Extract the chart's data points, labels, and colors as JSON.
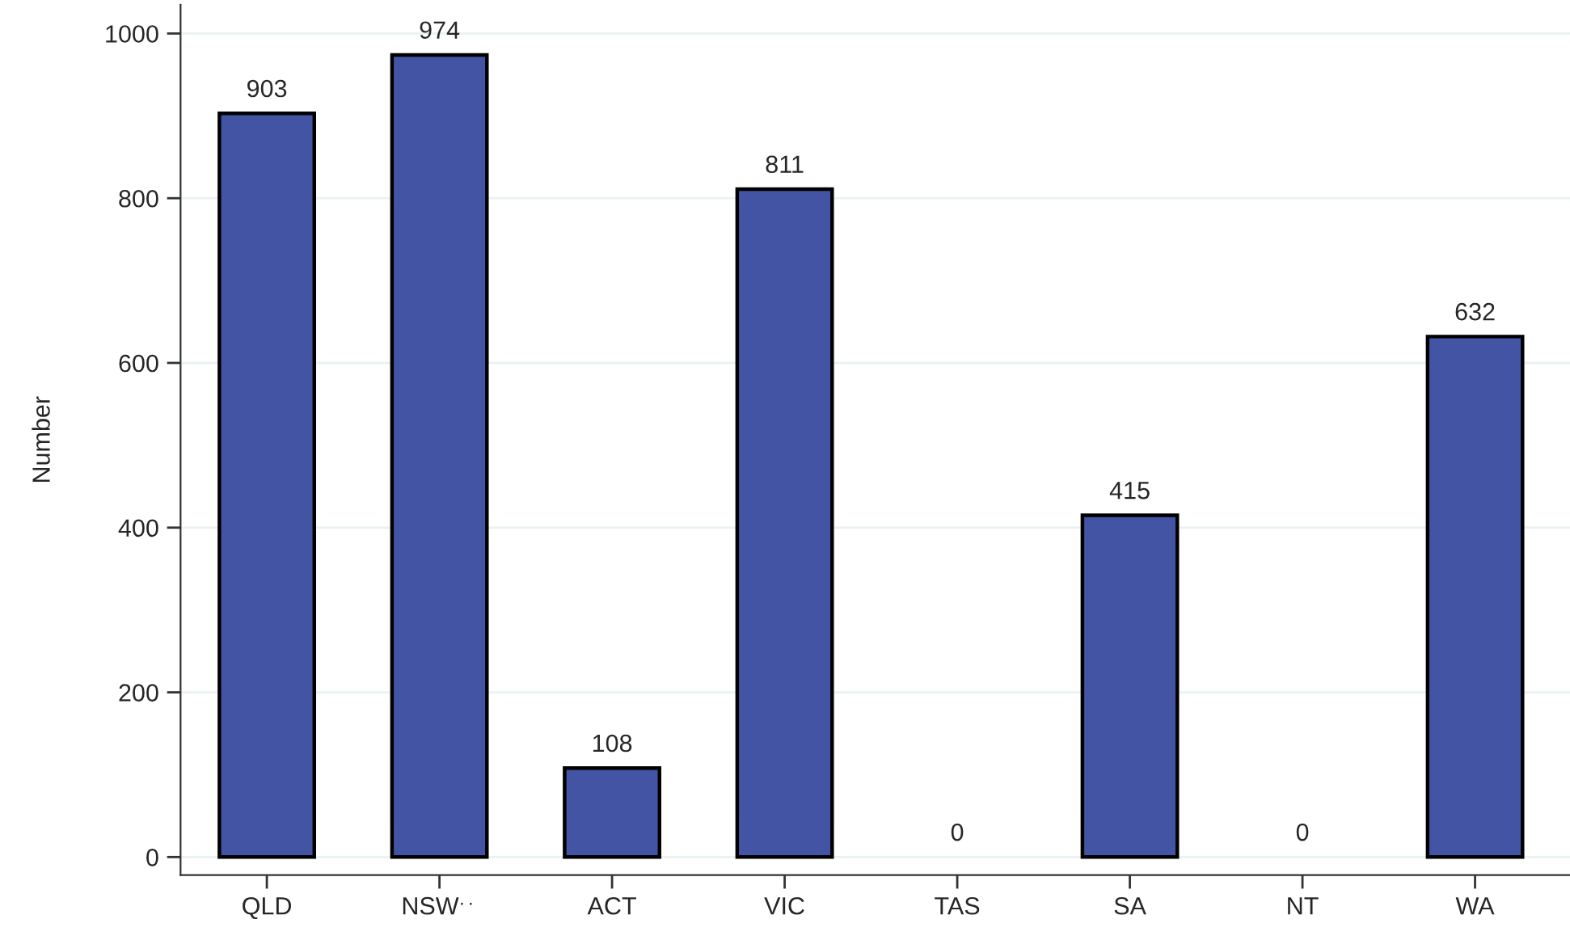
{
  "chart_data": {
    "type": "bar",
    "ylabel": "Number",
    "categories": [
      "QLD",
      "NSW$^{..}$",
      "ACT",
      "VIC",
      "TAS",
      "SA",
      "NT",
      "WA"
    ],
    "values": [
      903,
      974,
      108,
      811,
      0,
      415,
      0,
      632
    ],
    "color": "#4254a3",
    "ylim": [
      -22,
      1035
    ],
    "yticks": [
      0,
      200,
      400,
      600,
      800,
      1000
    ],
    "grid": "y",
    "data_labels": true
  }
}
